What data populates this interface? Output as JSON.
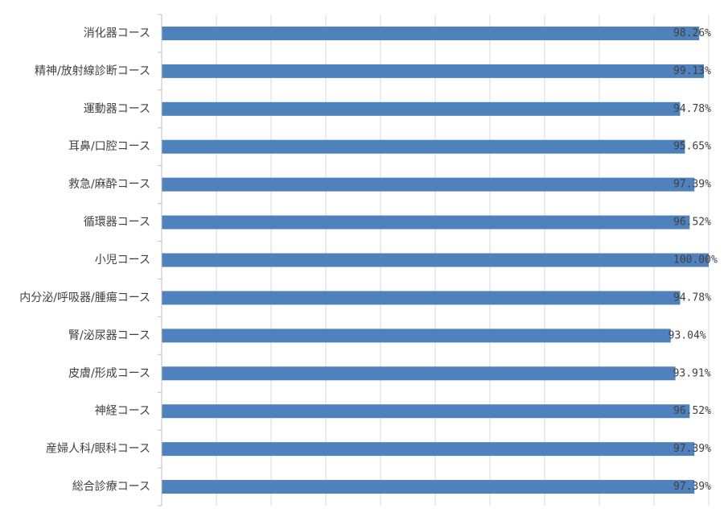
{
  "chart_data": {
    "type": "bar",
    "orientation": "horizontal",
    "title": "",
    "xlabel": "",
    "ylabel": "",
    "categories": [
      "消化器コース",
      "精神/放射線診断コース",
      "運動器コース",
      "耳鼻/口腔コース",
      "救急/麻酔コース",
      "循環器コース",
      "小児コース",
      "内分泌/呼吸器/腫瘍コース",
      "腎/泌尿器コース",
      "皮膚/形成コース",
      "神経コース",
      "産婦人科/眼科コース",
      "総合診療コース"
    ],
    "values": [
      98.26,
      99.13,
      94.78,
      95.65,
      97.39,
      96.52,
      100.0,
      94.78,
      93.04,
      93.91,
      96.52,
      97.39,
      97.39
    ],
    "value_labels": [
      "98.26%",
      "99.13%",
      "94.78%",
      "95.65%",
      "97.39%",
      "96.52%",
      "100.00%",
      "94.78%",
      "93.04%",
      "93.91%",
      "96.52%",
      "97.39%",
      "97.39%"
    ],
    "xlim": [
      0,
      100
    ],
    "grid": true,
    "gridlines": 10,
    "bar_color": "#4f81bd"
  }
}
